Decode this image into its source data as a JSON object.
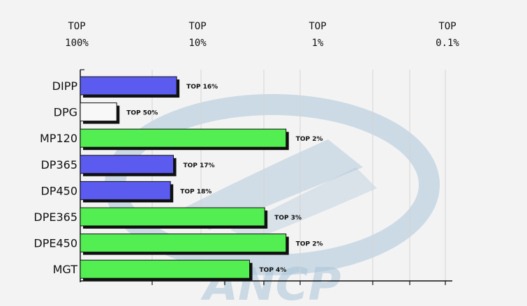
{
  "chart_data": {
    "type": "bar",
    "orientation": "horizontal",
    "scale": "log",
    "top_ticks": [
      {
        "line1": "TOP",
        "line2": "100%",
        "value": 100
      },
      {
        "line1": "TOP",
        "line2": "10%",
        "value": 10
      },
      {
        "line1": "TOP",
        "line2": "1%",
        "value": 1
      },
      {
        "line1": "TOP",
        "line2": "0.1%",
        "value": 0.1
      }
    ],
    "categories": [
      "DIPP",
      "DPG",
      "MP120",
      "DP365",
      "DP450",
      "DPE365",
      "DPE450",
      "MGT"
    ],
    "values": [
      16,
      50,
      2,
      17,
      18,
      3,
      2,
      4
    ],
    "labels": [
      "TOP 16%",
      "TOP 50%",
      "TOP 2%",
      "TOP 17%",
      "TOP 18%",
      "TOP 3%",
      "TOP 2%",
      "TOP 4%"
    ],
    "bar_colors": [
      "#5b5bf0",
      "#f8f8f8",
      "#52ee52",
      "#5b5bf0",
      "#5b5bf0",
      "#52ee52",
      "#52ee52",
      "#52ee52"
    ],
    "grid": true,
    "watermark": "ANCP"
  },
  "colors": {
    "background": "#f3f3f3",
    "gridline": "#d4d4d4",
    "bar_shadow": "#111111",
    "watermark": "#a9c4d8"
  }
}
